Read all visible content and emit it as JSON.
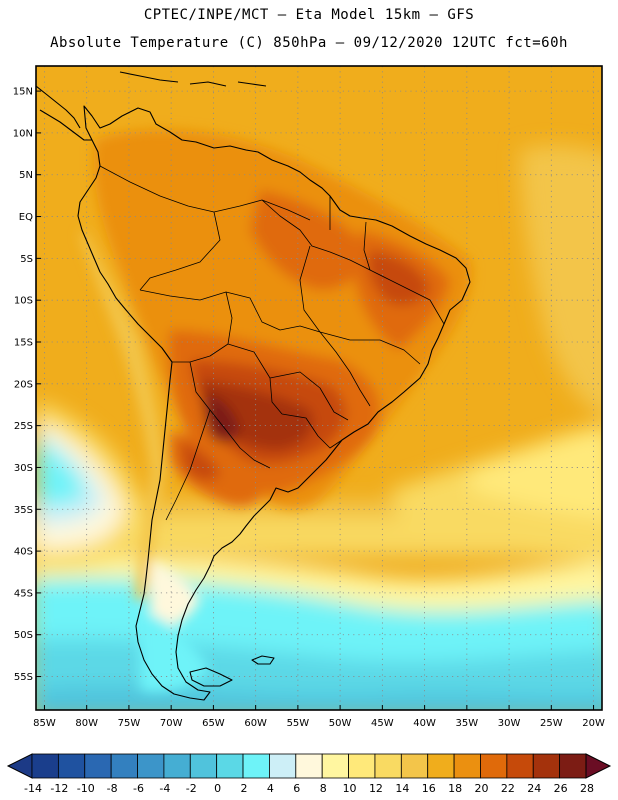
{
  "title_line1": "CPTEC/INPE/MCT –  Eta Model 15km – GFS",
  "title_line2": "Absolute Temperature (C) 850hPa – 09/12/2020 12UTC fct=60h",
  "map": {
    "lon_range": [
      -86,
      -19
    ],
    "lat_range": [
      -59,
      18
    ],
    "lat_ticks": [
      {
        "label": "15N",
        "lat": 15
      },
      {
        "label": "10N",
        "lat": 10
      },
      {
        "label": "5N",
        "lat": 5
      },
      {
        "label": "EQ",
        "lat": 0
      },
      {
        "label": "5S",
        "lat": -5
      },
      {
        "label": "10S",
        "lat": -10
      },
      {
        "label": "15S",
        "lat": -15
      },
      {
        "label": "20S",
        "lat": -20
      },
      {
        "label": "25S",
        "lat": -25
      },
      {
        "label": "30S",
        "lat": -30
      },
      {
        "label": "35S",
        "lat": -35
      },
      {
        "label": "40S",
        "lat": -40
      },
      {
        "label": "45S",
        "lat": -45
      },
      {
        "label": "50S",
        "lat": -50
      },
      {
        "label": "55S",
        "lat": -55
      }
    ],
    "lon_ticks": [
      {
        "label": "85W",
        "lon": -85
      },
      {
        "label": "80W",
        "lon": -80
      },
      {
        "label": "75W",
        "lon": -75
      },
      {
        "label": "70W",
        "lon": -70
      },
      {
        "label": "65W",
        "lon": -65
      },
      {
        "label": "60W",
        "lon": -60
      },
      {
        "label": "55W",
        "lon": -55
      },
      {
        "label": "50W",
        "lon": -50
      },
      {
        "label": "45W",
        "lon": -45
      },
      {
        "label": "40W",
        "lon": -40
      },
      {
        "label": "35W",
        "lon": -35
      },
      {
        "label": "30W",
        "lon": -30
      },
      {
        "label": "25W",
        "lon": -25
      },
      {
        "label": "20W",
        "lon": -20
      }
    ]
  },
  "colorbar": {
    "labels": [
      "-14",
      "-12",
      "-10",
      "-8",
      "-6",
      "-4",
      "-2",
      "0",
      "2",
      "4",
      "6",
      "8",
      "10",
      "12",
      "14",
      "16",
      "18",
      "20",
      "22",
      "24",
      "26",
      "28"
    ],
    "colors": [
      "#1a3e8c",
      "#1f52a0",
      "#2a68b2",
      "#3380bf",
      "#3c95c9",
      "#45aed3",
      "#50c3dc",
      "#5bd8e6",
      "#6ef3f8",
      "#cdeff7",
      "#fff8dc",
      "#fff6a0",
      "#ffe97a",
      "#f9da62",
      "#f3c54a",
      "#f0ad1c",
      "#eb9010",
      "#e06a0a",
      "#c64a0a",
      "#a4320c",
      "#7c1c14"
    ],
    "low_color": "#1c3a86",
    "high_color": "#6a0d24"
  },
  "temp_colors": {
    "t_m4": "#45aed3",
    "t_m2": "#50c3dc",
    "t_0": "#5bd8e6",
    "t_2": "#6ef3f8",
    "t_4": "#cdeff7",
    "t_6": "#fff8dc",
    "t_8": "#fff6a0",
    "t_10": "#ffe97a",
    "t_12": "#f9da62",
    "t_14": "#f3c54a",
    "t_16": "#f0ad1c",
    "t_18": "#eb9010",
    "t_20": "#e06a0a",
    "t_22": "#c64a0a",
    "t_24": "#a4320c",
    "t_26": "#7c1c14"
  }
}
